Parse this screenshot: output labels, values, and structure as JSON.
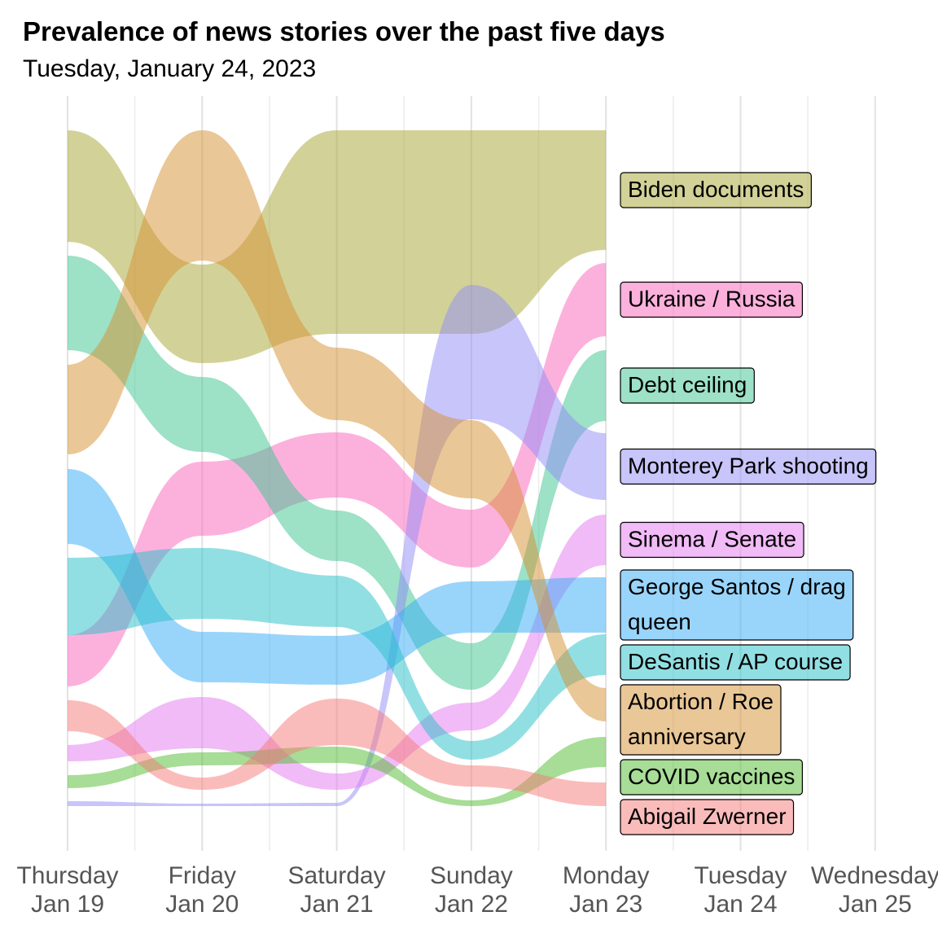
{
  "title": "Prevalence of news stories over the past five days",
  "subtitle": "Tuesday, January 24, 2023",
  "chart_data": {
    "type": "area",
    "kind": "bump-stream",
    "x": [
      "Thursday\nJan 19",
      "Friday\nJan 20",
      "Saturday\nJan 21",
      "Sunday\nJan 22",
      "Monday\nJan 23",
      "Tuesday\nJan 24",
      "Wednesday\nJan 25"
    ],
    "data_days": 5,
    "grid": true,
    "legend": "direct labels at right",
    "series": [
      {
        "name": "Biden documents",
        "color": "#a5a631",
        "label_lines": [
          "Biden documents"
        ],
        "bands": [
          [
            160,
            297
          ],
          [
            325,
            446
          ],
          [
            160,
            410
          ],
          [
            160,
            410
          ],
          [
            160,
            307
          ]
        ]
      },
      {
        "name": "Ukraine / Russia",
        "color": "#f963bb",
        "label_lines": [
          "Ukraine / Russia"
        ],
        "bands": [
          [
            780,
            843
          ],
          [
            567,
            658
          ],
          [
            531,
            611
          ],
          [
            626,
            697
          ],
          [
            323,
            413
          ]
        ]
      },
      {
        "name": "Debt ceiling",
        "color": "#3bc48f",
        "label_lines": [
          "Debt ceiling"
        ],
        "bands": [
          [
            314,
            430
          ],
          [
            463,
            555
          ],
          [
            627,
            689
          ],
          [
            790,
            847
          ],
          [
            430,
            517
          ]
        ]
      },
      {
        "name": "Monterey Park shooting",
        "color": "#928cf7",
        "label_lines": [
          "Monterey Park shooting"
        ],
        "bands": [
          [
            984,
            990
          ],
          [
            987,
            990
          ],
          [
            986,
            990
          ],
          [
            350,
            515
          ],
          [
            532,
            614
          ]
        ]
      },
      {
        "name": "Sinema / Senate",
        "color": "#e477f0",
        "label_lines": [
          "Sinema / Senate"
        ],
        "bands": [
          [
            915,
            935
          ],
          [
            856,
            919
          ],
          [
            950,
            970
          ],
          [
            863,
            897
          ],
          [
            632,
            694
          ]
        ]
      },
      {
        "name": "George Santos / drag queen",
        "color": "#33abf6",
        "label_lines": [
          "George Santos / drag",
          "queen"
        ],
        "bands": [
          [
            576,
            668
          ],
          [
            776,
            838
          ],
          [
            781,
            841
          ],
          [
            714,
            777
          ],
          [
            709,
            777
          ]
        ]
      },
      {
        "name": "DeSantis / AP course",
        "color": "#25bfc7",
        "label_lines": [
          "DeSantis / AP course"
        ],
        "bands": [
          [
            685,
            780
          ],
          [
            673,
            760
          ],
          [
            707,
            770
          ],
          [
            910,
            933
          ],
          [
            779,
            829
          ]
        ]
      },
      {
        "name": "Abortion / Roe anniversary",
        "color": "#d6902f",
        "label_lines": [
          "Abortion / Roe",
          "anniversary"
        ],
        "bands": [
          [
            448,
            558
          ],
          [
            160,
            320
          ],
          [
            427,
            516
          ],
          [
            516,
            612
          ],
          [
            845,
            886
          ]
        ]
      },
      {
        "name": "COVID vaccines",
        "color": "#4fbb2e",
        "label_lines": [
          "COVID vaccines"
        ],
        "bands": [
          [
            952,
            968
          ],
          [
            924,
            940
          ],
          [
            917,
            937
          ],
          [
            983,
            990
          ],
          [
            905,
            942
          ]
        ]
      },
      {
        "name": "Abigail Zwerner",
        "color": "#f57977",
        "label_lines": [
          "Abigail Zwerner"
        ],
        "bands": [
          [
            860,
            898
          ],
          [
            955,
            970
          ],
          [
            858,
            915
          ],
          [
            940,
            966
          ],
          [
            961,
            990
          ]
        ]
      }
    ]
  }
}
